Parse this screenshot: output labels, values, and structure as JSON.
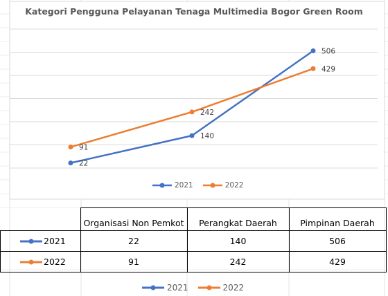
{
  "chart_data": {
    "type": "line",
    "title": "Kategori Pengguna Pelayanan Tenaga Multimedia Bogor Green Room",
    "categories": [
      "Organisasi Non Pemkot",
      "Perangkat Daerah",
      "Pimpinan Daerah"
    ],
    "series": [
      {
        "name": "2021",
        "values": [
          22,
          140,
          506
        ],
        "color": "#4472c4"
      },
      {
        "name": "2022",
        "values": [
          91,
          242,
          429
        ],
        "color": "#ed7d31"
      }
    ],
    "ylim": [
      0,
      600
    ],
    "grid": true,
    "legend": "bottom",
    "data_labels": true
  },
  "table": {
    "headers": [
      "Organisasi Non Pemkot",
      "Perangkat Daerah",
      "Pimpinan Daerah"
    ],
    "rows": [
      {
        "series": "2021",
        "cells": [
          "22",
          "140",
          "506"
        ]
      },
      {
        "series": "2022",
        "cells": [
          "91",
          "242",
          "429"
        ]
      }
    ]
  },
  "legend": {
    "items": [
      "2021",
      "2022"
    ]
  }
}
